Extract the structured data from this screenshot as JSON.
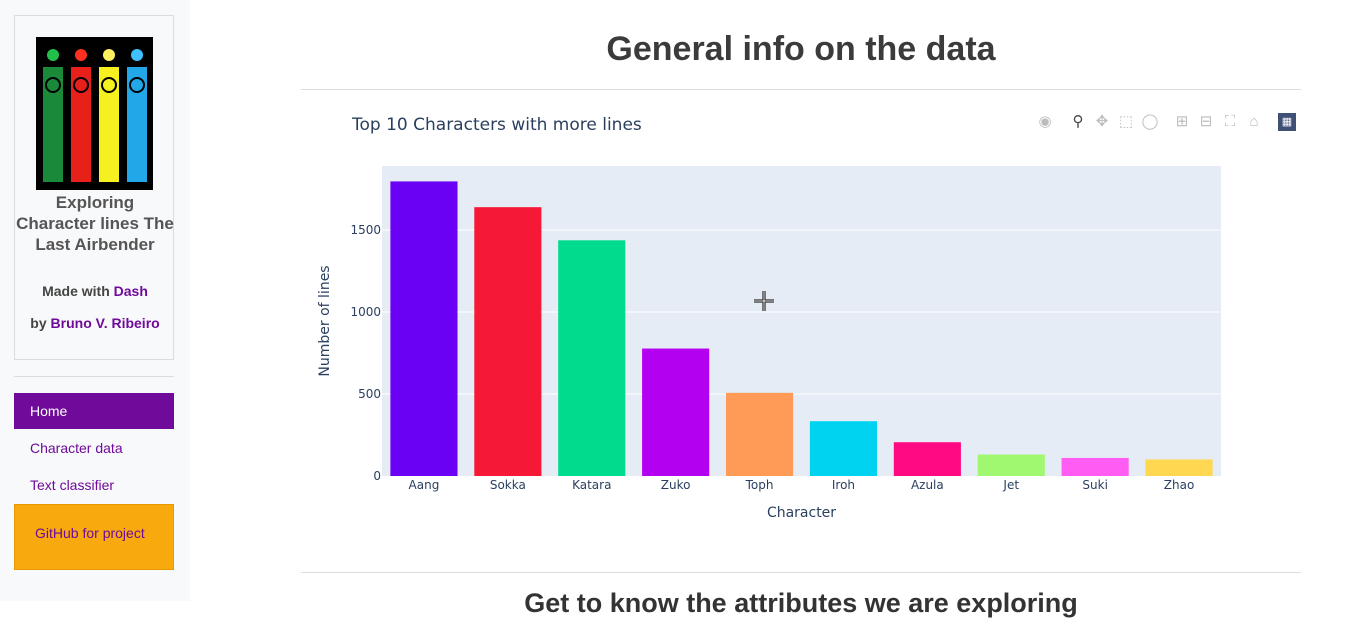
{
  "sidebar": {
    "app_title": "Exploring Character lines The Last Airbender",
    "made_with_prefix": "Made with",
    "made_with_link": "Dash",
    "by_prefix": "by",
    "by_link": "Bruno V. Ribeiro",
    "nav": [
      {
        "label": "Home",
        "active": true
      },
      {
        "label": "Character data",
        "active": false
      },
      {
        "label": "Text classifier",
        "active": false
      }
    ],
    "github_label": "GitHub for project"
  },
  "main": {
    "title": "General info on the data",
    "next_heading": "Get to know the attributes we are exploring"
  },
  "modebar_icons": [
    "camera-icon",
    "zoom-icon",
    "pan-icon",
    "box-select-icon",
    "lasso-icon",
    "zoom-in-icon",
    "zoom-out-icon",
    "autoscale-icon",
    "reset-axes-icon",
    "plotly-logo-icon"
  ],
  "chart_data": {
    "type": "bar",
    "title": "Top 10 Characters with more lines",
    "xlabel": "Character",
    "ylabel": "Number of lines",
    "categories": [
      "Aang",
      "Sokka",
      "Katara",
      "Zuko",
      "Toph",
      "Iroh",
      "Azula",
      "Jet",
      "Suki",
      "Zhao"
    ],
    "values": [
      1796,
      1639,
      1437,
      777,
      507,
      334,
      206,
      131,
      110,
      101
    ],
    "colors": [
      "#6a00f4",
      "#f61935",
      "#00dc8e",
      "#b400f0",
      "#ff9b56",
      "#00d3f0",
      "#ff0a82",
      "#a0f770",
      "#ff5cf4",
      "#ffd750"
    ],
    "yticks": [
      0,
      500,
      1000,
      1500
    ],
    "ylim": [
      0,
      1890
    ],
    "plot_bgcolor": "#e5ecf6",
    "grid": true
  }
}
